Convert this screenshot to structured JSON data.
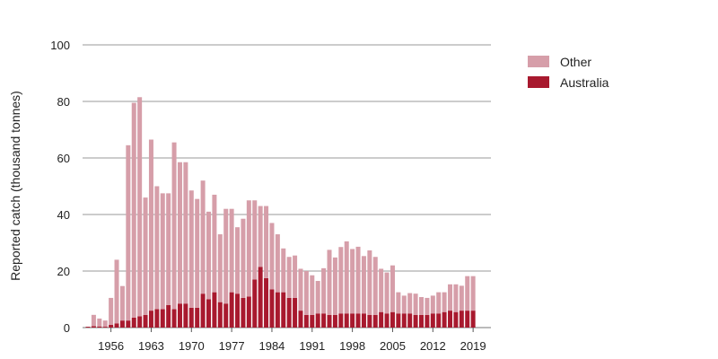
{
  "chart_data": {
    "type": "bar",
    "stacked": true,
    "ylabel": "Reported catch (thousand tonnes)",
    "ylim": [
      0,
      100
    ],
    "yticks": [
      0,
      20,
      40,
      60,
      80,
      100
    ],
    "grid": true,
    "legend_position": "top-right",
    "x_start": 1952,
    "x_end": 2019,
    "xticks": [
      1956,
      1963,
      1970,
      1977,
      1984,
      1991,
      1998,
      2005,
      2012,
      2019
    ],
    "series": [
      {
        "name": "Australia",
        "color": "#a8192e",
        "values": [
          0.3,
          0.5,
          0.4,
          0.3,
          1,
          1.5,
          2.5,
          2.5,
          3.5,
          4,
          4.5,
          6,
          6.5,
          6.5,
          8,
          6.5,
          8.5,
          8.5,
          7,
          7,
          12,
          10,
          12.5,
          9,
          8.5,
          12.5,
          12,
          10.5,
          11,
          17,
          21.5,
          17.5,
          13.5,
          12.5,
          12.5,
          10.5,
          10.5,
          6,
          4.5,
          4.5,
          5,
          5,
          4.5,
          4.5,
          5,
          5,
          5,
          5,
          5,
          4.5,
          4.5,
          5.5,
          5,
          5.5,
          5,
          5,
          5,
          4.5,
          4.5,
          4.5,
          5,
          5,
          5.5,
          6,
          5.5,
          6,
          6,
          6
        ]
      },
      {
        "name": "Other",
        "color": "#d69ea9",
        "values": [
          0,
          4,
          2.8,
          2.2,
          9.5,
          22.5,
          12.2,
          62,
          76,
          77.5,
          41.5,
          60.5,
          43.5,
          41,
          39.5,
          59,
          50,
          50,
          41.5,
          38.5,
          40,
          31,
          34.5,
          24,
          33.5,
          29.5,
          23.5,
          28,
          34,
          28,
          21.5,
          25.5,
          23.5,
          20.5,
          15.5,
          14.5,
          15,
          14.8,
          15.5,
          14,
          11.5,
          16,
          23,
          20.3,
          23.5,
          25.5,
          22.8,
          23.6,
          20.3,
          22.8,
          20.5,
          15.3,
          14.5,
          16.5,
          7.5,
          6.3,
          7.2,
          7.5,
          6.3,
          6,
          6.3,
          7.5,
          7,
          9.3,
          9.8,
          8.8,
          12.2,
          12.2
        ]
      }
    ]
  }
}
